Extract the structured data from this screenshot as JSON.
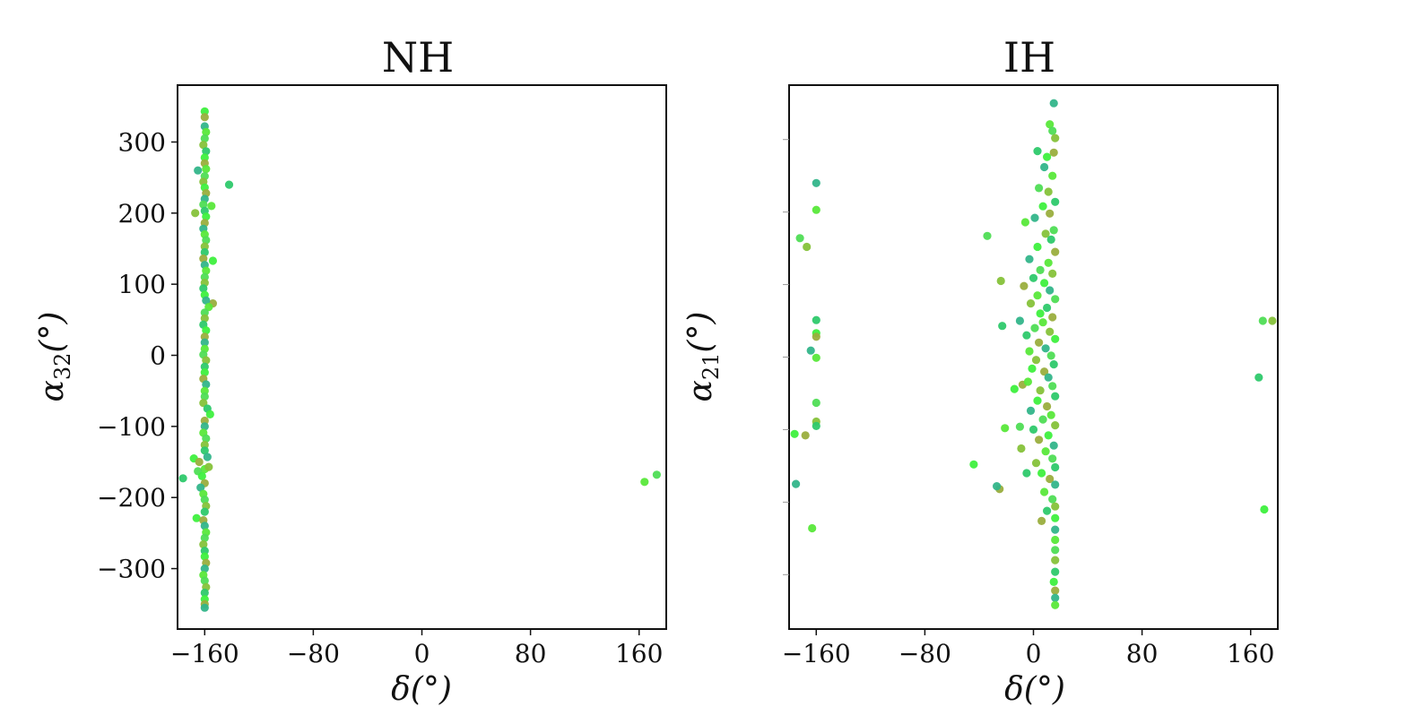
{
  "chart_data": [
    {
      "type": "scatter",
      "title": "NH",
      "xlabel": "δ(°)",
      "ylabel_symbol": "α",
      "ylabel_sub": "32",
      "ylabel_unit": "(°)",
      "xlim": [
        -180,
        180
      ],
      "ylim": [
        -385,
        380
      ],
      "xticks": [
        -160,
        -80,
        0,
        80,
        160
      ],
      "xtick_labels": [
        "−160",
        "−80",
        "0",
        "80",
        "160"
      ],
      "yticks": [
        300,
        200,
        100,
        0,
        -100,
        -200,
        -300
      ],
      "ytick_labels": [
        "300",
        "200",
        "100",
        "0",
        "−100",
        "−200",
        "−300"
      ],
      "show_ytick_labels": true,
      "grid": false,
      "colors": [
        "#3ef03e",
        "#58e83a",
        "#2ec96c",
        "#33b58a",
        "#86c23a",
        "#9aae3e",
        "#4fdd55"
      ],
      "points": [
        {
          "x": -160,
          "y": 343
        },
        {
          "x": -160,
          "y": 335
        },
        {
          "x": -160,
          "y": 322
        },
        {
          "x": -159,
          "y": 314
        },
        {
          "x": -160,
          "y": 305
        },
        {
          "x": -161,
          "y": 296
        },
        {
          "x": -159,
          "y": 287
        },
        {
          "x": -160,
          "y": 278
        },
        {
          "x": -160,
          "y": 270
        },
        {
          "x": -165,
          "y": 260
        },
        {
          "x": -159,
          "y": 262
        },
        {
          "x": -160,
          "y": 252
        },
        {
          "x": -161,
          "y": 244
        },
        {
          "x": -142,
          "y": 240
        },
        {
          "x": -160,
          "y": 236
        },
        {
          "x": -159,
          "y": 228
        },
        {
          "x": -160,
          "y": 220
        },
        {
          "x": -155,
          "y": 210
        },
        {
          "x": -161,
          "y": 212
        },
        {
          "x": -167,
          "y": 200
        },
        {
          "x": -160,
          "y": 203
        },
        {
          "x": -159,
          "y": 195
        },
        {
          "x": -160,
          "y": 186
        },
        {
          "x": -161,
          "y": 178
        },
        {
          "x": -160,
          "y": 170
        },
        {
          "x": -159,
          "y": 162
        },
        {
          "x": -160,
          "y": 153
        },
        {
          "x": -160,
          "y": 145
        },
        {
          "x": -154,
          "y": 133
        },
        {
          "x": -161,
          "y": 136
        },
        {
          "x": -160,
          "y": 127
        },
        {
          "x": -159,
          "y": 119
        },
        {
          "x": -160,
          "y": 110
        },
        {
          "x": -160,
          "y": 102
        },
        {
          "x": -161,
          "y": 94
        },
        {
          "x": -160,
          "y": 85
        },
        {
          "x": -154,
          "y": 73
        },
        {
          "x": -159,
          "y": 77
        },
        {
          "x": -157,
          "y": 68
        },
        {
          "x": -160,
          "y": 60
        },
        {
          "x": -160,
          "y": 52
        },
        {
          "x": -161,
          "y": 43
        },
        {
          "x": -159,
          "y": 35
        },
        {
          "x": -160,
          "y": 26
        },
        {
          "x": -160,
          "y": 18
        },
        {
          "x": -160,
          "y": 9
        },
        {
          "x": -161,
          "y": 1
        },
        {
          "x": -159,
          "y": -7
        },
        {
          "x": -160,
          "y": -16
        },
        {
          "x": -160,
          "y": -24
        },
        {
          "x": -161,
          "y": -33
        },
        {
          "x": -159,
          "y": -41
        },
        {
          "x": -160,
          "y": -50
        },
        {
          "x": -160,
          "y": -58
        },
        {
          "x": -161,
          "y": -67
        },
        {
          "x": -158,
          "y": -75
        },
        {
          "x": -156,
          "y": -83
        },
        {
          "x": -160,
          "y": -92
        },
        {
          "x": -160,
          "y": -100
        },
        {
          "x": -161,
          "y": -109
        },
        {
          "x": -159,
          "y": -117
        },
        {
          "x": -160,
          "y": -126
        },
        {
          "x": -160,
          "y": -134
        },
        {
          "x": -168,
          "y": -145
        },
        {
          "x": -164,
          "y": -150
        },
        {
          "x": -158,
          "y": -143
        },
        {
          "x": -160,
          "y": -160
        },
        {
          "x": -165,
          "y": -163
        },
        {
          "x": -157,
          "y": -157
        },
        {
          "x": -176,
          "y": -173
        },
        {
          "x": -162,
          "y": -170
        },
        {
          "x": -160,
          "y": -180
        },
        {
          "x": -163,
          "y": -186
        },
        {
          "x": -161,
          "y": -195
        },
        {
          "x": -160,
          "y": -203
        },
        {
          "x": -159,
          "y": -212
        },
        {
          "x": -160,
          "y": -220
        },
        {
          "x": -166,
          "y": -229
        },
        {
          "x": -161,
          "y": -232
        },
        {
          "x": -160,
          "y": -240
        },
        {
          "x": -159,
          "y": -249
        },
        {
          "x": -160,
          "y": -257
        },
        {
          "x": -161,
          "y": -266
        },
        {
          "x": -160,
          "y": -275
        },
        {
          "x": -160,
          "y": -283
        },
        {
          "x": -159,
          "y": -292
        },
        {
          "x": -160,
          "y": -300
        },
        {
          "x": -161,
          "y": -309
        },
        {
          "x": -160,
          "y": -317
        },
        {
          "x": -159,
          "y": -326
        },
        {
          "x": -160,
          "y": -334
        },
        {
          "x": -160,
          "y": -343
        },
        {
          "x": -160,
          "y": -350
        },
        {
          "x": -160,
          "y": -355
        },
        {
          "x": 164,
          "y": -178
        },
        {
          "x": 173,
          "y": -168
        }
      ]
    },
    {
      "type": "scatter",
      "title": "IH",
      "xlabel": "δ(°)",
      "ylabel_symbol": "α",
      "ylabel_sub": "21",
      "ylabel_unit": "(°)",
      "xlim": [
        -180,
        180
      ],
      "ylim": [
        -375,
        375
      ],
      "xticks": [
        -160,
        -80,
        0,
        80,
        160
      ],
      "xtick_labels": [
        "−160",
        "−80",
        "0",
        "80",
        "160"
      ],
      "yticks": [
        300,
        200,
        100,
        0,
        -100,
        -200,
        -300
      ],
      "ytick_labels": [],
      "show_ytick_labels": false,
      "grid": false,
      "colors": [
        "#3ef03e",
        "#58e83a",
        "#2ec96c",
        "#33b58a",
        "#86c23a",
        "#9aae3e",
        "#4fdd55"
      ],
      "points": [
        {
          "x": -160,
          "y": 240
        },
        {
          "x": -160,
          "y": 203
        },
        {
          "x": -172,
          "y": 164
        },
        {
          "x": -167,
          "y": 152
        },
        {
          "x": -160,
          "y": 51
        },
        {
          "x": -160,
          "y": 33
        },
        {
          "x": -160,
          "y": 28
        },
        {
          "x": -164,
          "y": 9
        },
        {
          "x": -160,
          "y": -1
        },
        {
          "x": -160,
          "y": -63
        },
        {
          "x": -160,
          "y": -89
        },
        {
          "x": -160,
          "y": -95
        },
        {
          "x": -176,
          "y": -106
        },
        {
          "x": -168,
          "y": -108
        },
        {
          "x": -175,
          "y": -175
        },
        {
          "x": -163,
          "y": -236
        },
        {
          "x": -34,
          "y": 167
        },
        {
          "x": -24,
          "y": 105
        },
        {
          "x": -23,
          "y": 43
        },
        {
          "x": -44,
          "y": -148
        },
        {
          "x": -25,
          "y": -182
        },
        {
          "x": -27,
          "y": -178
        },
        {
          "x": -21,
          "y": -98
        },
        {
          "x": -10,
          "y": -96
        },
        {
          "x": -9,
          "y": -126
        },
        {
          "x": -5,
          "y": -160
        },
        {
          "x": -14,
          "y": -44
        },
        {
          "x": -8,
          "y": -38
        },
        {
          "x": 15,
          "y": 350
        },
        {
          "x": 12,
          "y": 321
        },
        {
          "x": 14,
          "y": 312
        },
        {
          "x": 16,
          "y": 302
        },
        {
          "x": 3,
          "y": 284
        },
        {
          "x": 10,
          "y": 276
        },
        {
          "x": 15,
          "y": 282
        },
        {
          "x": 8,
          "y": 262
        },
        {
          "x": 14,
          "y": 250
        },
        {
          "x": 4,
          "y": 233
        },
        {
          "x": 11,
          "y": 228
        },
        {
          "x": 16,
          "y": 214
        },
        {
          "x": 7,
          "y": 208
        },
        {
          "x": 12,
          "y": 198
        },
        {
          "x": 1,
          "y": 192
        },
        {
          "x": -6,
          "y": 186
        },
        {
          "x": 15,
          "y": 175
        },
        {
          "x": 9,
          "y": 170
        },
        {
          "x": 13,
          "y": 162
        },
        {
          "x": 3,
          "y": 152
        },
        {
          "x": 16,
          "y": 145
        },
        {
          "x": -3,
          "y": 135
        },
        {
          "x": 11,
          "y": 130
        },
        {
          "x": 5,
          "y": 120
        },
        {
          "x": 14,
          "y": 115
        },
        {
          "x": 0,
          "y": 109
        },
        {
          "x": 8,
          "y": 102
        },
        {
          "x": -7,
          "y": 98
        },
        {
          "x": 12,
          "y": 92
        },
        {
          "x": 3,
          "y": 85
        },
        {
          "x": 16,
          "y": 80
        },
        {
          "x": -2,
          "y": 74
        },
        {
          "x": 10,
          "y": 68
        },
        {
          "x": 5,
          "y": 60
        },
        {
          "x": 14,
          "y": 55
        },
        {
          "x": -10,
          "y": 50
        },
        {
          "x": 7,
          "y": 48
        },
        {
          "x": 1,
          "y": 40
        },
        {
          "x": 12,
          "y": 35
        },
        {
          "x": -5,
          "y": 30
        },
        {
          "x": 16,
          "y": 25
        },
        {
          "x": 4,
          "y": 20
        },
        {
          "x": 9,
          "y": 12
        },
        {
          "x": -3,
          "y": 8
        },
        {
          "x": 13,
          "y": 2
        },
        {
          "x": 2,
          "y": -4
        },
        {
          "x": 15,
          "y": -10
        },
        {
          "x": -1,
          "y": -16
        },
        {
          "x": 8,
          "y": -20
        },
        {
          "x": 11,
          "y": -28
        },
        {
          "x": -4,
          "y": -34
        },
        {
          "x": 14,
          "y": -40
        },
        {
          "x": 5,
          "y": -46
        },
        {
          "x": 16,
          "y": -54
        },
        {
          "x": 3,
          "y": -60
        },
        {
          "x": 10,
          "y": -68
        },
        {
          "x": -2,
          "y": -74
        },
        {
          "x": 13,
          "y": -80
        },
        {
          "x": 7,
          "y": -86
        },
        {
          "x": 16,
          "y": -94
        },
        {
          "x": 0,
          "y": -100
        },
        {
          "x": 11,
          "y": -108
        },
        {
          "x": 4,
          "y": -114
        },
        {
          "x": 15,
          "y": -122
        },
        {
          "x": 9,
          "y": -130
        },
        {
          "x": 14,
          "y": -140
        },
        {
          "x": 2,
          "y": -146
        },
        {
          "x": 16,
          "y": -152
        },
        {
          "x": 6,
          "y": -160
        },
        {
          "x": 12,
          "y": -168
        },
        {
          "x": 16,
          "y": -176
        },
        {
          "x": 8,
          "y": -186
        },
        {
          "x": 14,
          "y": -196
        },
        {
          "x": 16,
          "y": -206
        },
        {
          "x": 10,
          "y": -212
        },
        {
          "x": 16,
          "y": -222
        },
        {
          "x": 6,
          "y": -226
        },
        {
          "x": 16,
          "y": -238
        },
        {
          "x": 16,
          "y": -252
        },
        {
          "x": 16,
          "y": -266
        },
        {
          "x": 16,
          "y": -280
        },
        {
          "x": 16,
          "y": -296
        },
        {
          "x": 15,
          "y": -310
        },
        {
          "x": 16,
          "y": -322
        },
        {
          "x": 16,
          "y": -332
        },
        {
          "x": 16,
          "y": -342
        },
        {
          "x": 169,
          "y": 50
        },
        {
          "x": 176,
          "y": 50
        },
        {
          "x": 166,
          "y": -28
        },
        {
          "x": 170,
          "y": -210
        }
      ]
    }
  ]
}
